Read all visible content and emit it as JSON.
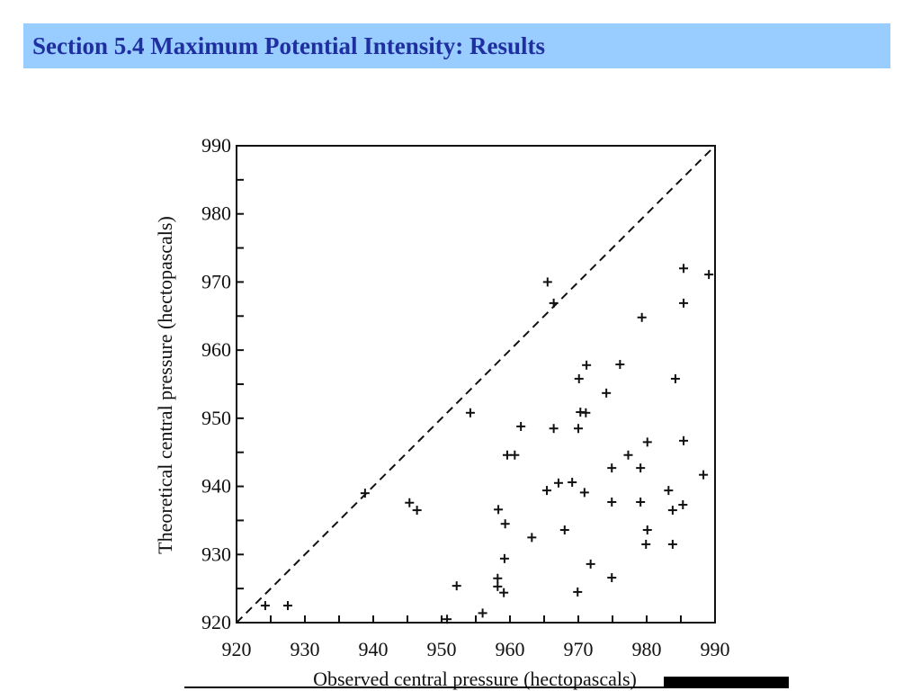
{
  "header": {
    "title": "Section 5.4 Maximum Potential Intensity: Results"
  },
  "colors": {
    "header_bg": "#99ccff",
    "title": "#1f2f9f",
    "ink": "#111111"
  },
  "chart_data": {
    "type": "scatter",
    "title": "",
    "xlabel": "Observed central pressure (hectopascals)",
    "ylabel": "Theoretical central pressure (hectopascals)",
    "xlim": [
      920,
      990
    ],
    "ylim": [
      920,
      990
    ],
    "x_ticks": [
      920,
      930,
      940,
      950,
      960,
      970,
      980,
      990
    ],
    "y_ticks": [
      920,
      930,
      940,
      950,
      960,
      970,
      980,
      990
    ],
    "minor_tick_interval": 5,
    "grid": false,
    "marker": "+",
    "reference_line": {
      "style": "dashed",
      "from": [
        920,
        920
      ],
      "to": [
        990,
        990
      ]
    },
    "points": [
      [
        924.2,
        922.5
      ],
      [
        927.5,
        922.5
      ],
      [
        938.8,
        939.0
      ],
      [
        945.3,
        937.6
      ],
      [
        946.4,
        936.5
      ],
      [
        950.8,
        920.5
      ],
      [
        952.2,
        925.4
      ],
      [
        954.2,
        950.8
      ],
      [
        956.0,
        921.4
      ],
      [
        958.2,
        926.5
      ],
      [
        958.2,
        925.3
      ],
      [
        958.3,
        936.6
      ],
      [
        959.1,
        924.4
      ],
      [
        959.2,
        929.4
      ],
      [
        959.3,
        934.5
      ],
      [
        959.6,
        944.6
      ],
      [
        960.7,
        944.6
      ],
      [
        961.6,
        948.8
      ],
      [
        963.2,
        932.5
      ],
      [
        965.4,
        939.4
      ],
      [
        965.5,
        970.0
      ],
      [
        966.4,
        966.9
      ],
      [
        966.4,
        948.5
      ],
      [
        967.1,
        940.5
      ],
      [
        968.0,
        933.6
      ],
      [
        969.1,
        940.6
      ],
      [
        969.9,
        924.5
      ],
      [
        970.0,
        948.5
      ],
      [
        970.1,
        955.8
      ],
      [
        970.3,
        950.9
      ],
      [
        970.9,
        939.1
      ],
      [
        971.1,
        950.8
      ],
      [
        971.2,
        957.8
      ],
      [
        971.8,
        928.6
      ],
      [
        974.1,
        953.7
      ],
      [
        974.9,
        942.7
      ],
      [
        974.9,
        937.7
      ],
      [
        974.9,
        926.6
      ],
      [
        976.1,
        957.9
      ],
      [
        977.3,
        944.6
      ],
      [
        979.1,
        942.7
      ],
      [
        979.1,
        937.7
      ],
      [
        979.3,
        964.8
      ],
      [
        979.9,
        931.5
      ],
      [
        980.1,
        946.5
      ],
      [
        980.1,
        933.6
      ],
      [
        983.2,
        939.4
      ],
      [
        983.8,
        936.5
      ],
      [
        983.8,
        931.5
      ],
      [
        984.2,
        955.8
      ],
      [
        985.3,
        937.3
      ],
      [
        985.4,
        946.7
      ],
      [
        985.4,
        966.9
      ],
      [
        985.4,
        972.0
      ],
      [
        988.3,
        941.7
      ],
      [
        989.1,
        971.1
      ]
    ]
  }
}
